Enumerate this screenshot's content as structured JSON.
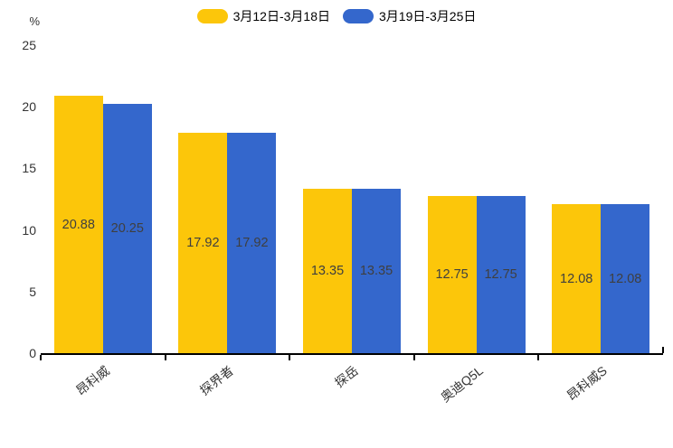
{
  "legend": {
    "items": [
      {
        "label": "3月12日-3月18日",
        "color": "#FCC60A"
      },
      {
        "label": "3月19日-3月25日",
        "color": "#3467CC"
      }
    ]
  },
  "chart_data": {
    "type": "bar",
    "title": "",
    "xlabel": "",
    "ylabel": "%",
    "ylim": [
      0,
      25
    ],
    "yticks": [
      0,
      5,
      10,
      15,
      20,
      25
    ],
    "grid": false,
    "legend_position": "top-center",
    "value_labels": "inside-center",
    "categories": [
      "昂科威",
      "探界者",
      "探岳",
      "奥迪Q5L",
      "昂科威S"
    ],
    "series": [
      {
        "name": "3月12日-3月18日",
        "color": "#FCC60A",
        "values": [
          20.88,
          17.92,
          13.35,
          12.75,
          12.08
        ]
      },
      {
        "name": "3月19日-3月25日",
        "color": "#3467CC",
        "values": [
          20.25,
          17.92,
          13.35,
          12.75,
          12.08
        ]
      }
    ]
  }
}
